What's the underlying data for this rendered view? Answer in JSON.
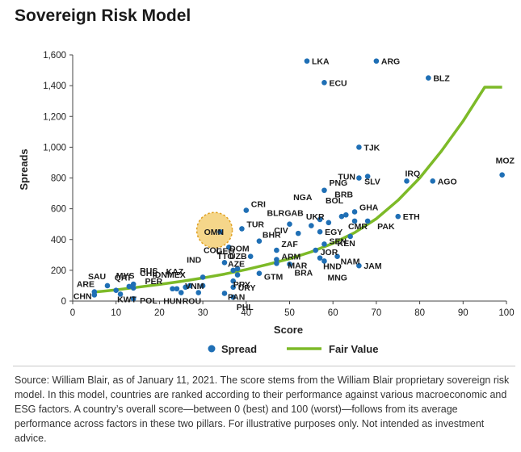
{
  "title": "Sovereign Risk Model",
  "source": "Source: William Blair, as of January 11, 2021. The score stems from the William Blair proprietary sovereign risk model. In this model, countries are ranked according to their performance against various macroeconomic and ESG factors. A country’s overall score—between 0 (best) and 100 (worst)—follows from its average performance across factors in these two pillars. For illustrative purposes only. Not intended as investment advice.",
  "colors": {
    "spread": "#1f6fb5",
    "fair_value": "#7dba28",
    "highlight_fill": "#f5d68a",
    "highlight_stroke": "#e0a020"
  },
  "chart_data": {
    "type": "scatter",
    "xlabel": "Score",
    "ylabel": "Spreads",
    "xlim": [
      0,
      100
    ],
    "ylim": [
      0,
      1600
    ],
    "xticks": [
      0,
      10,
      20,
      30,
      40,
      50,
      60,
      70,
      80,
      90,
      100
    ],
    "yticks": [
      0,
      200,
      400,
      600,
      800,
      1000,
      1200,
      1400,
      1600
    ],
    "ytick_labels": [
      "0",
      "200",
      "400",
      "600",
      "800",
      "1,000",
      "1,200",
      "1,400",
      "1,600"
    ],
    "grid": false,
    "legend_position": "bottom-center",
    "highlighted": "OMN",
    "series": [
      {
        "name": "Spread",
        "kind": "scatter",
        "points": [
          {
            "label": "CHN",
            "x": 5,
            "y": 40
          },
          {
            "label": "ARE",
            "x": 5,
            "y": 60
          },
          {
            "label": "SAU",
            "x": 8,
            "y": 100
          },
          {
            "label": "QAT",
            "x": 10,
            "y": 70
          },
          {
            "label": "MYS",
            "x": 13,
            "y": 95
          },
          {
            "label": "KWT",
            "x": 11,
            "y": 45
          },
          {
            "label": "CHL",
            "x": 14,
            "y": 110
          },
          {
            "label": "RUS",
            "x": 14,
            "y": 85
          },
          {
            "label": "POL",
            "x": 14,
            "y": 15
          },
          {
            "label": "PER",
            "x": 23,
            "y": 80
          },
          {
            "label": "IDN",
            "x": 24,
            "y": 80
          },
          {
            "label": "KAZ",
            "x": 26,
            "y": 90
          },
          {
            "label": "HUN",
            "x": 25,
            "y": 55
          },
          {
            "label": "MEX",
            "x": 27,
            "y": 100
          },
          {
            "label": "ROU",
            "x": 29,
            "y": 55
          },
          {
            "label": "VNM",
            "x": 30,
            "y": 100
          },
          {
            "label": "IND",
            "x": 30,
            "y": 155
          },
          {
            "label": "OMN",
            "x": 34,
            "y": 450
          },
          {
            "label": "CRI",
            "x": 40,
            "y": 590
          },
          {
            "label": "TUR",
            "x": 39,
            "y": 470
          },
          {
            "label": "GEO",
            "x": 36,
            "y": 350
          },
          {
            "label": "COL",
            "x": 35,
            "y": 250
          },
          {
            "label": "TTO",
            "x": 37,
            "y": 200
          },
          {
            "label": "AZE",
            "x": 38,
            "y": 170
          },
          {
            "label": "PRY",
            "x": 37,
            "y": 130
          },
          {
            "label": "URY",
            "x": 37,
            "y": 90
          },
          {
            "label": "PAN",
            "x": 35,
            "y": 50
          },
          {
            "label": "PHL",
            "x": 37,
            "y": 25
          },
          {
            "label": "DOM",
            "x": 41,
            "y": 290
          },
          {
            "label": "UZB",
            "x": 38,
            "y": 210
          },
          {
            "label": "BHR",
            "x": 43,
            "y": 390
          },
          {
            "label": "GTM",
            "x": 43,
            "y": 180
          },
          {
            "label": "ZAF",
            "x": 47,
            "y": 330
          },
          {
            "label": "ARM",
            "x": 47,
            "y": 270
          },
          {
            "label": "MAR",
            "x": 47,
            "y": 245
          },
          {
            "label": "BRA",
            "x": 50,
            "y": 240
          },
          {
            "label": "BLR",
            "x": 50,
            "y": 500
          },
          {
            "label": "GAB",
            "x": 55,
            "y": 490
          },
          {
            "label": "CIV",
            "x": 52,
            "y": 440
          },
          {
            "label": "NGA",
            "x": 57,
            "y": 530
          },
          {
            "label": "UKR",
            "x": 59,
            "y": 510
          },
          {
            "label": "EGY",
            "x": 57,
            "y": 450
          },
          {
            "label": "BOL",
            "x": 62,
            "y": 550
          },
          {
            "label": "PNG",
            "x": 58,
            "y": 720
          },
          {
            "label": "BRB",
            "x": 63,
            "y": 560
          },
          {
            "label": "GHA",
            "x": 65,
            "y": 580
          },
          {
            "label": "CMR",
            "x": 65,
            "y": 520
          },
          {
            "label": "KEN",
            "x": 64,
            "y": 420
          },
          {
            "label": "PAK",
            "x": 68,
            "y": 520
          },
          {
            "label": "SEN",
            "x": 58,
            "y": 370
          },
          {
            "label": "JOR",
            "x": 56,
            "y": 330
          },
          {
            "label": "NAM",
            "x": 61,
            "y": 290
          },
          {
            "label": "HND",
            "x": 57,
            "y": 280
          },
          {
            "label": "MNG",
            "x": 58,
            "y": 260
          },
          {
            "label": "JAM",
            "x": 66,
            "y": 230
          },
          {
            "label": "ETH",
            "x": 75,
            "y": 550
          },
          {
            "label": "TUN",
            "x": 66,
            "y": 800
          },
          {
            "label": "SLV",
            "x": 68,
            "y": 810
          },
          {
            "label": "TJK",
            "x": 66,
            "y": 1000
          },
          {
            "label": "IRQ",
            "x": 77,
            "y": 780
          },
          {
            "label": "AGO",
            "x": 83,
            "y": 780
          },
          {
            "label": "MOZ",
            "x": 99,
            "y": 820
          },
          {
            "label": "LKA",
            "x": 54,
            "y": 1560
          },
          {
            "label": "ECU",
            "x": 58,
            "y": 1420
          },
          {
            "label": "ARG",
            "x": 70,
            "y": 1560
          },
          {
            "label": "BLZ",
            "x": 82,
            "y": 1450
          }
        ]
      },
      {
        "name": "Fair Value",
        "kind": "line",
        "points": [
          {
            "x": 5,
            "y": 58
          },
          {
            "x": 10,
            "y": 73
          },
          {
            "x": 15,
            "y": 90
          },
          {
            "x": 20,
            "y": 108
          },
          {
            "x": 25,
            "y": 128
          },
          {
            "x": 30,
            "y": 150
          },
          {
            "x": 35,
            "y": 175
          },
          {
            "x": 40,
            "y": 205
          },
          {
            "x": 45,
            "y": 238
          },
          {
            "x": 50,
            "y": 275
          },
          {
            "x": 55,
            "y": 320
          },
          {
            "x": 60,
            "y": 375
          },
          {
            "x": 65,
            "y": 445
          },
          {
            "x": 70,
            "y": 535
          },
          {
            "x": 75,
            "y": 655
          },
          {
            "x": 80,
            "y": 800
          },
          {
            "x": 85,
            "y": 975
          },
          {
            "x": 90,
            "y": 1170
          },
          {
            "x": 95,
            "y": 1390
          },
          {
            "x": 99,
            "y": 1390
          }
        ]
      }
    ]
  }
}
